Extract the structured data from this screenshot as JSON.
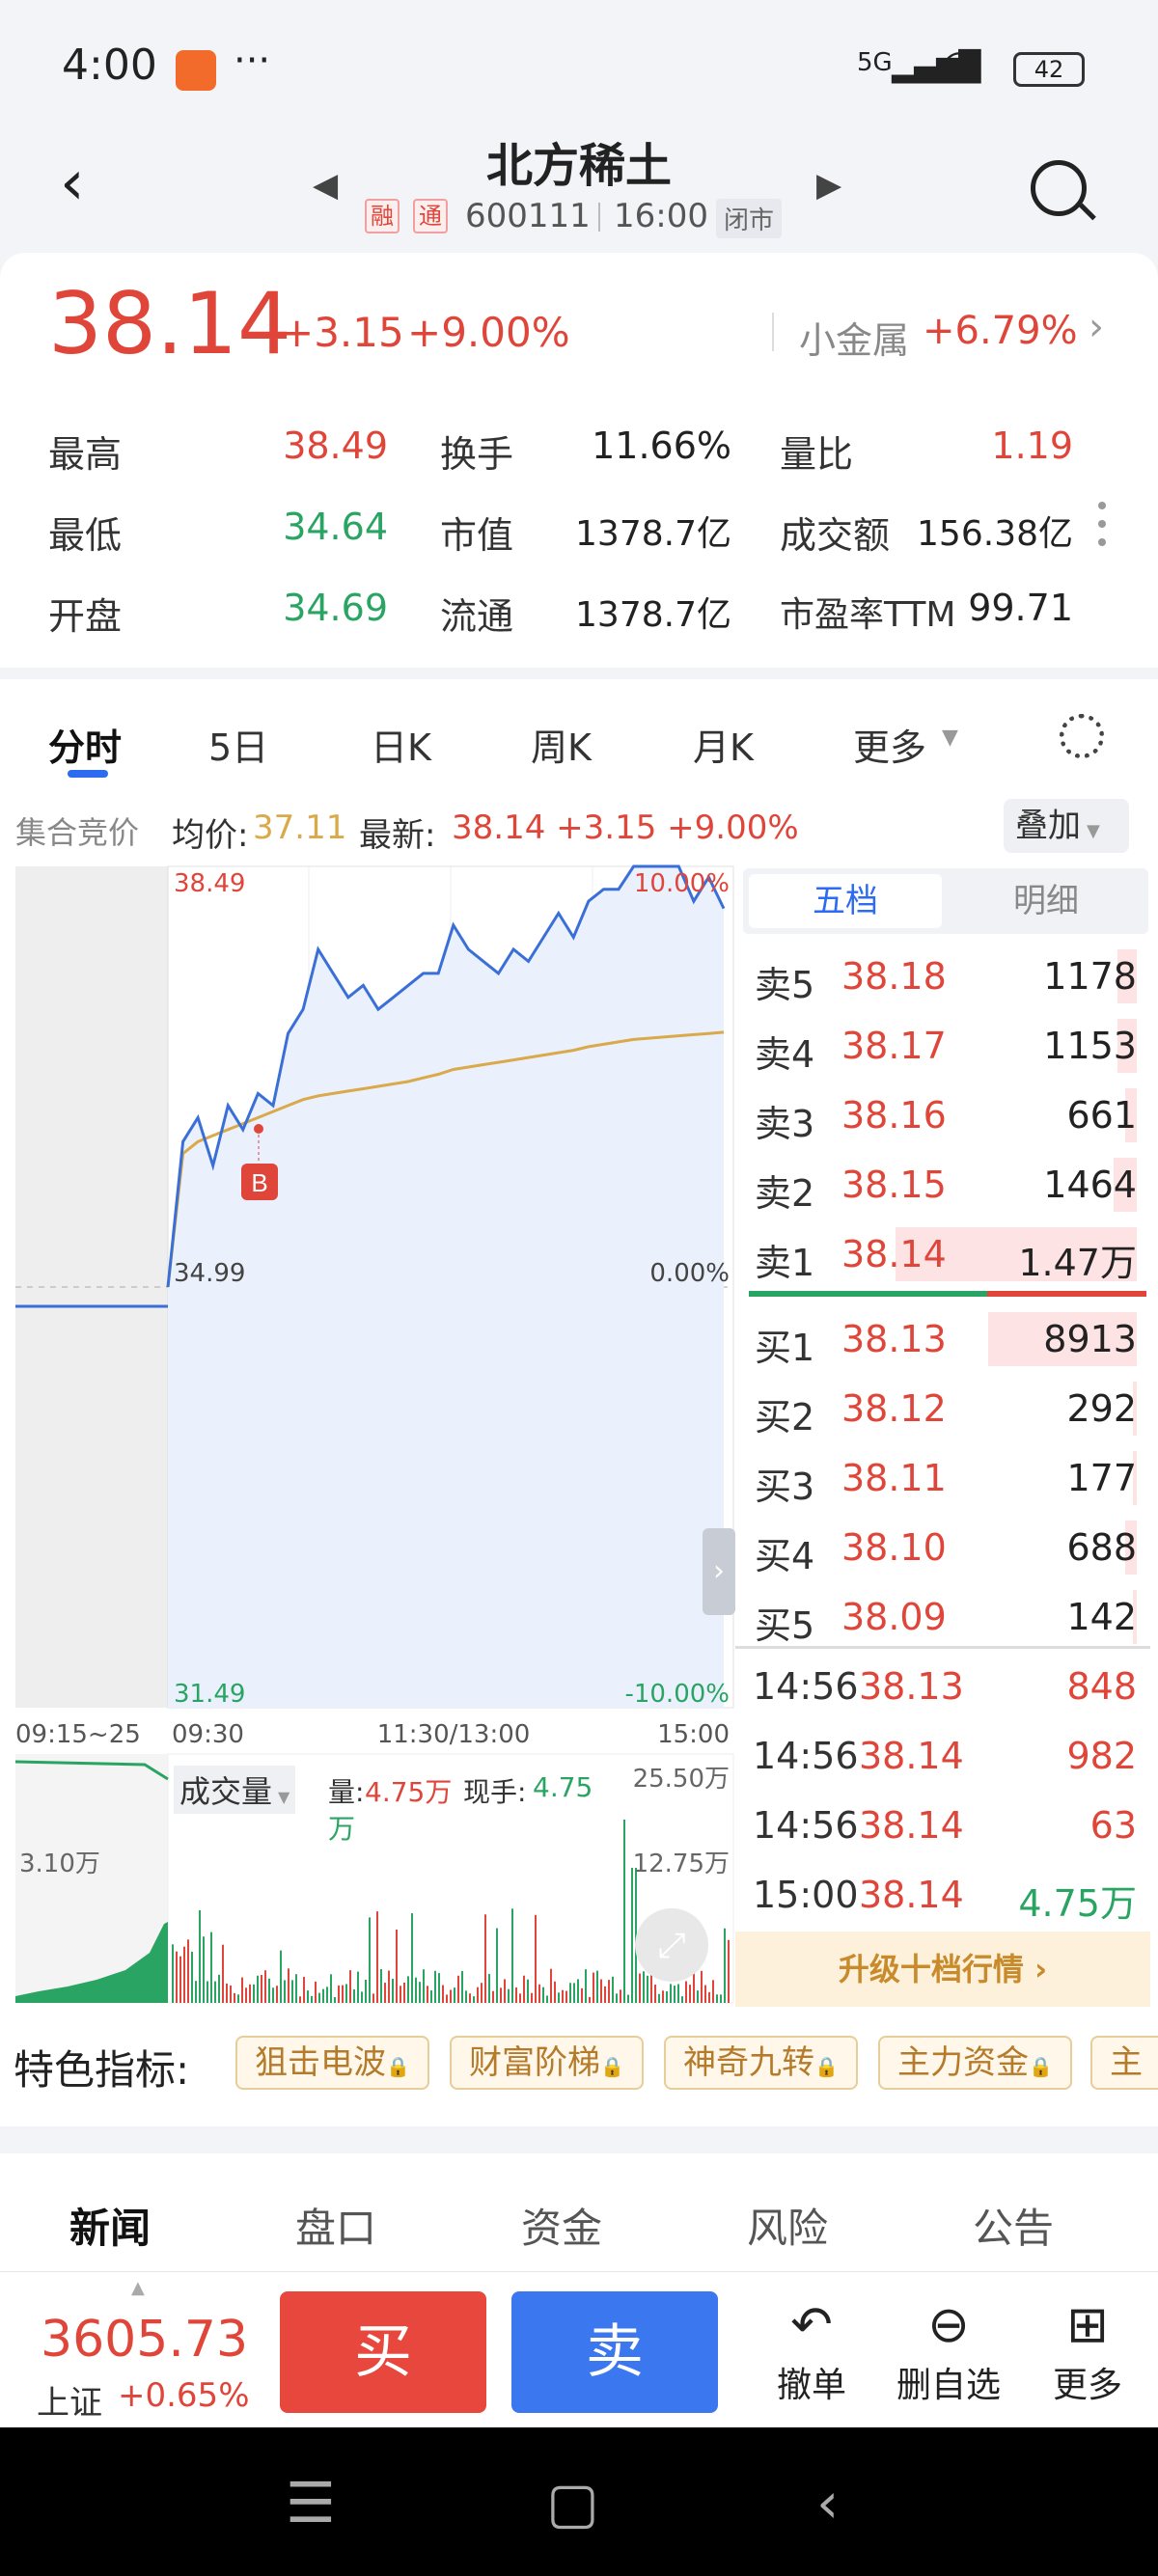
{
  "status_bar": {
    "time": "4:00",
    "dots": "···",
    "signal": "5G",
    "battery": "42"
  },
  "header": {
    "title": "北方稀土",
    "tag_rong": "融",
    "tag_tong": "通",
    "code": "600111",
    "time": "16:00",
    "state": "闭市"
  },
  "quote": {
    "price": "38.14",
    "change": "+3.15",
    "change_pct": "+9.00%",
    "industry": "小金属",
    "industry_pct": "+6.79%",
    "rows": [
      {
        "l1": "最高",
        "v1": "38.49",
        "l2": "换手",
        "v2": "11.66%",
        "l3": "量比",
        "v3": "1.19"
      },
      {
        "l1": "最低",
        "v1": "34.64",
        "l2": "市值",
        "v2": "1378.7亿",
        "l3": "成交额",
        "v3": "156.38亿"
      },
      {
        "l1": "开盘",
        "v1": "34.69",
        "l2": "流通",
        "v2": "1378.7亿",
        "l3": "市盈率TTM",
        "v3": "99.71"
      }
    ]
  },
  "tabs": [
    "分时",
    "5日",
    "日K",
    "周K",
    "月K",
    "更多"
  ],
  "chart_info": {
    "auction": "集合竞价",
    "avg_label": "均价:",
    "avg_value": "37.11",
    "latest_label": "最新:",
    "latest_value": "38.14 +3.15 +9.00%",
    "overlay": "叠加"
  },
  "chart_labels": {
    "high": "38.49",
    "high_pct": "10.00%",
    "base": "34.99",
    "base_pct": "0.00%",
    "low": "31.49",
    "low_pct": "-10.00%",
    "t_pre": "09:15~25",
    "t_open": "09:30",
    "t_mid": "11:30/13:00",
    "t_close": "15:00",
    "marker": "B",
    "vol_title": "成交量",
    "vol_label": "量:",
    "vol_value": "4.75万",
    "hand_label": "现手:",
    "hand_value": "4.75",
    "hand_unit": "万",
    "vol_max": "25.50万",
    "vol_mid": "12.75万",
    "pre_vol": "3.10万"
  },
  "chart_data": {
    "type": "line",
    "title": "",
    "xlabel": "",
    "ylabel": "",
    "ylim": [
      31.49,
      38.49
    ],
    "reference": 34.99,
    "x_ticks": [
      "09:30",
      "11:30/13:00",
      "15:00"
    ],
    "series": [
      {
        "name": "最新",
        "values": [
          34.99,
          36.2,
          36.4,
          36.0,
          36.5,
          36.3,
          36.6,
          36.5,
          37.1,
          37.3,
          37.8,
          37.6,
          37.4,
          37.5,
          37.3,
          37.4,
          37.5,
          37.6,
          37.6,
          38.0,
          37.8,
          37.7,
          37.6,
          37.8,
          37.7,
          37.9,
          38.1,
          37.9,
          38.2,
          38.3,
          38.3,
          38.49,
          38.49,
          38.49,
          38.49,
          38.2,
          38.4,
          38.14
        ]
      },
      {
        "name": "均价",
        "values": [
          34.99,
          36.1,
          36.2,
          36.25,
          36.3,
          36.35,
          36.4,
          36.45,
          36.5,
          36.55,
          36.58,
          36.6,
          36.62,
          36.64,
          36.66,
          36.68,
          36.7,
          36.73,
          36.76,
          36.8,
          36.82,
          36.84,
          36.86,
          36.88,
          36.9,
          36.92,
          36.94,
          36.96,
          36.99,
          37.01,
          37.03,
          37.05,
          37.06,
          37.07,
          37.08,
          37.09,
          37.1,
          37.11
        ]
      }
    ]
  },
  "order_book": {
    "tab_five": "五档",
    "tab_detail": "明细",
    "asks": [
      {
        "label": "卖5",
        "price": "38.18",
        "vol": "1178",
        "fill": 0.05
      },
      {
        "label": "卖4",
        "price": "38.17",
        "vol": "1153",
        "fill": 0.05
      },
      {
        "label": "卖3",
        "price": "38.16",
        "vol": "661",
        "fill": 0.03
      },
      {
        "label": "卖2",
        "price": "38.15",
        "vol": "1464",
        "fill": 0.06
      },
      {
        "label": "卖1",
        "price": "38.14",
        "vol": "1.47万",
        "fill": 0.62
      }
    ],
    "bids": [
      {
        "label": "买1",
        "price": "38.13",
        "vol": "8913",
        "fill": 0.38
      },
      {
        "label": "买2",
        "price": "38.12",
        "vol": "292",
        "fill": 0.01
      },
      {
        "label": "买3",
        "price": "38.11",
        "vol": "177",
        "fill": 0.01
      },
      {
        "label": "买4",
        "price": "38.10",
        "vol": "688",
        "fill": 0.03
      },
      {
        "label": "买5",
        "price": "38.09",
        "vol": "142",
        "fill": 0.01
      }
    ],
    "trades": [
      {
        "time": "14:56",
        "price": "38.13",
        "vol": "848",
        "color": "#e0453a"
      },
      {
        "time": "14:56",
        "price": "38.14",
        "vol": "982",
        "color": "#e0453a"
      },
      {
        "time": "14:56",
        "price": "38.14",
        "vol": "63",
        "color": "#e0453a"
      },
      {
        "time": "15:00",
        "price": "38.14",
        "vol": "4.75万",
        "color": "#2aa463"
      }
    ],
    "upgrade": "升级十档行情 ›"
  },
  "features": {
    "label": "特色指标:",
    "chips": [
      "狙击电波",
      "财富阶梯",
      "神奇九转",
      "主力资金",
      "主"
    ]
  },
  "news_tabs": [
    "新闻",
    "盘口",
    "资金",
    "风险",
    "公告"
  ],
  "bottom": {
    "index_value": "3605.73",
    "index_name": "上证",
    "index_change": "+0.65%",
    "buy": "买",
    "sell": "卖",
    "cancel": "撤单",
    "remove": "删自选",
    "more": "更多"
  },
  "colors": {
    "up": "#e0453a",
    "down": "#2aa463",
    "accent": "#2d6bf0",
    "line": "#3b6fd8",
    "avg": "#d9a94a"
  }
}
